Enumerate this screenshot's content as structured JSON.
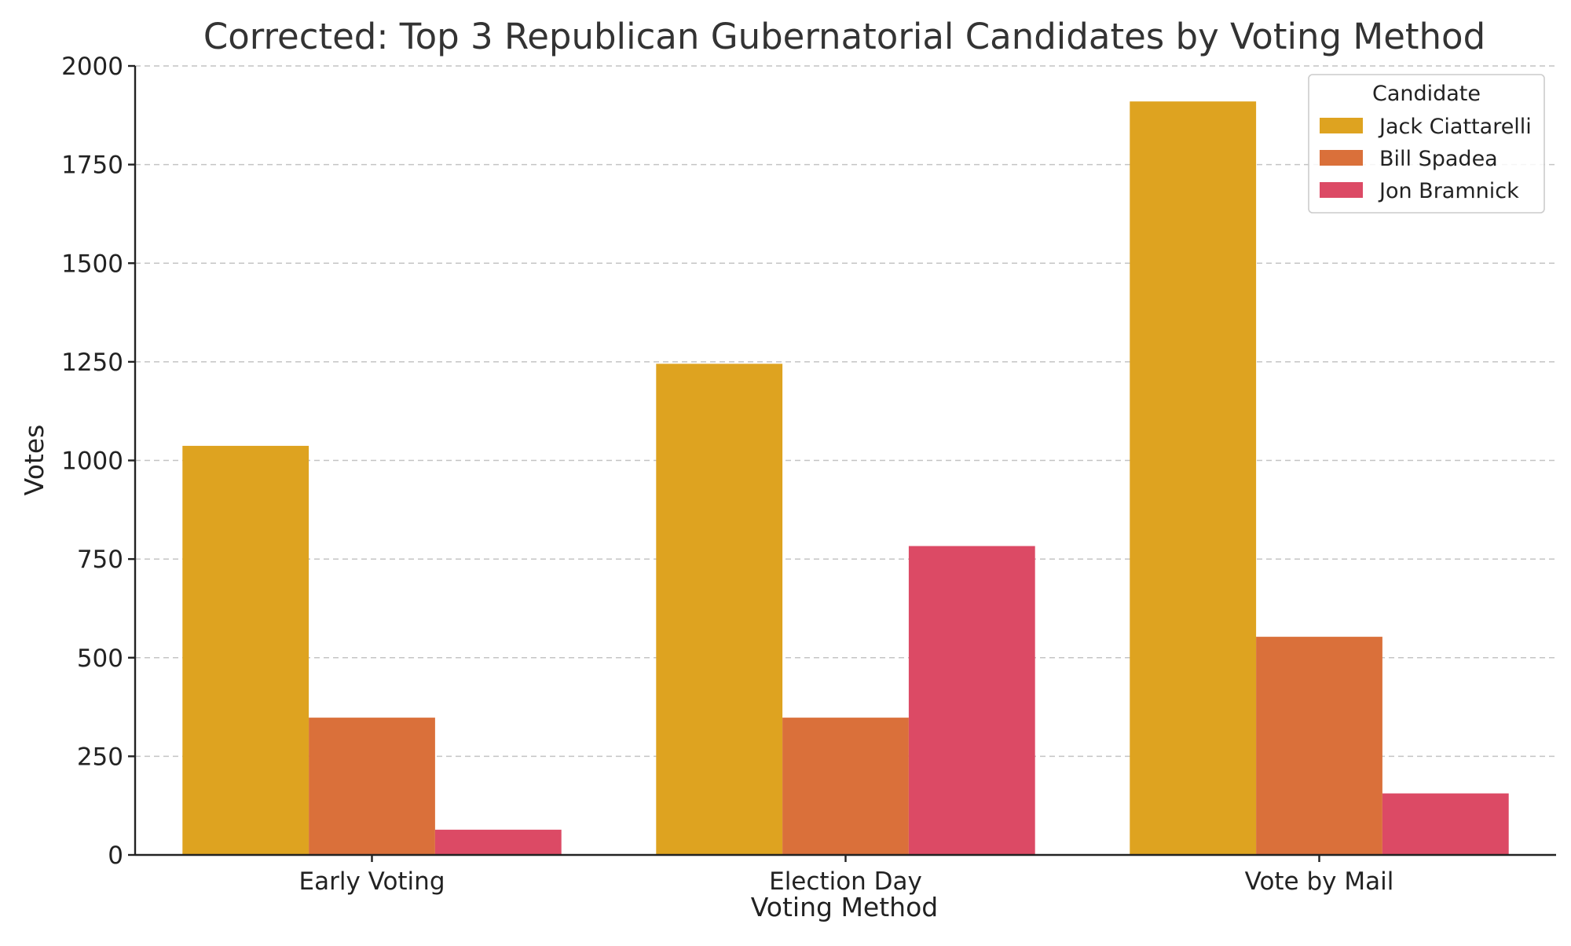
{
  "chart_data": {
    "type": "bar",
    "title": "Corrected: Top 3 Republican Gubernatorial Candidates by Voting Method",
    "xlabel": "Voting Method",
    "ylabel": "Votes",
    "categories": [
      "Early Voting",
      "Election Day",
      "Vote by Mail"
    ],
    "ylim": [
      0,
      2000
    ],
    "yticks": [
      0,
      250,
      500,
      750,
      1000,
      1250,
      1500,
      1750,
      2000
    ],
    "grid": "horizontal dashed",
    "legend": {
      "title": "Candidate",
      "placement": "top-right"
    },
    "series": [
      {
        "name": "Jack Ciattarelli",
        "color": "#DEA320",
        "values": [
          1037,
          1245,
          1910
        ]
      },
      {
        "name": "Bill Spadea",
        "color": "#DA703A",
        "values": [
          348,
          348,
          553
        ]
      },
      {
        "name": "Jon Bramnick",
        "color": "#DC4A65",
        "values": [
          64,
          783,
          156
        ]
      }
    ]
  }
}
